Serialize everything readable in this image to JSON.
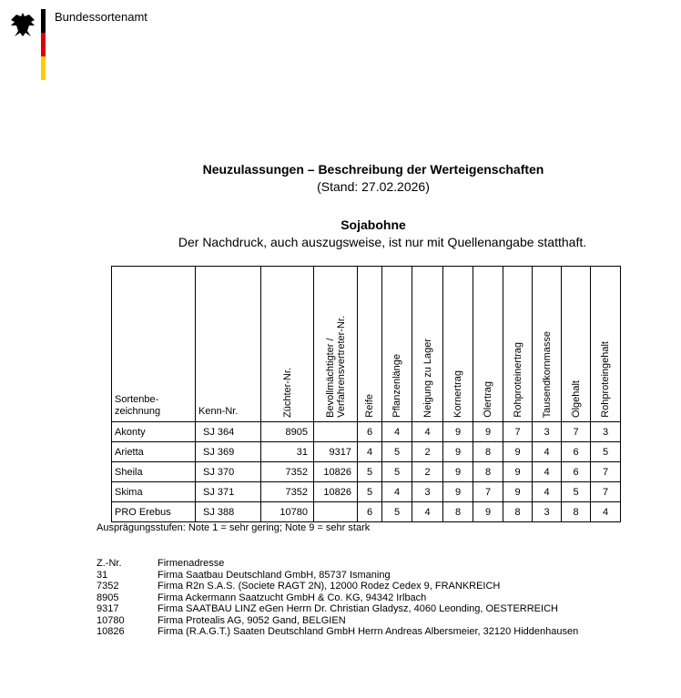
{
  "header": {
    "organization": "Bundessortenamt"
  },
  "title": "Neuzulassungen – Beschreibung der Werteigenschaften",
  "stand": "(Stand: 27.02.2026)",
  "crop": "Sojabohne",
  "notice": "Der Nachdruck, auch auszugsweise, ist nur mit Quellenangabe statthaft.",
  "table": {
    "columns": [
      "Sortenbe-\nzeichnung",
      "Kenn-Nr.",
      "Züchter-Nr.",
      "Bevollmächtigter /\nVerfahrensvertreter-Nr.",
      "Reife",
      "Pflanzenlänge",
      "Neigung zu Lager",
      "Kornertrag",
      "Ölertrag",
      "Rohproteinertrag",
      "Tausendkornmasse",
      "Ölgehalt",
      "Rohproteingehalt"
    ],
    "rows": [
      [
        "Akonty",
        "SJ 364",
        "8905",
        "",
        "6",
        "4",
        "4",
        "9",
        "9",
        "7",
        "3",
        "7",
        "3"
      ],
      [
        "Arietta",
        "SJ 369",
        "31",
        "9317",
        "4",
        "5",
        "2",
        "9",
        "8",
        "9",
        "4",
        "6",
        "5"
      ],
      [
        "Sheila",
        "SJ 370",
        "7352",
        "10826",
        "5",
        "5",
        "2",
        "9",
        "8",
        "9",
        "4",
        "6",
        "7"
      ],
      [
        "Skima",
        "SJ 371",
        "7352",
        "10826",
        "5",
        "4",
        "3",
        "9",
        "7",
        "9",
        "4",
        "5",
        "7"
      ],
      [
        "PRO Erebus",
        "SJ 388",
        "10780",
        "",
        "6",
        "5",
        "4",
        "8",
        "9",
        "8",
        "3",
        "8",
        "4"
      ]
    ]
  },
  "scale_note": "Ausprägungsstufen: Note 1 = sehr gering; Note 9 = sehr stark",
  "firms": {
    "header": [
      "Z.-Nr.",
      "Firmenadresse"
    ],
    "rows": [
      [
        "31",
        "Firma Saatbau Deutschland GmbH, 85737 Ismaning"
      ],
      [
        "7352",
        "Firma R2n S.A.S. (Societe RAGT 2N), 12000 Rodez Cedex 9, FRANKREICH"
      ],
      [
        "8905",
        "Firma Ackermann Saatzucht GmbH & Co. KG, 94342 Irlbach"
      ],
      [
        "9317",
        "Firma SAATBAU LINZ eGen Herrn Dr. Christian Gladysz, 4060 Leonding, OESTERREICH"
      ],
      [
        "10780",
        "Firma Protealis AG, 9052 Gand, BELGIEN"
      ],
      [
        "10826",
        "Firma (R.A.G.T.) Saaten Deutschland GmbH Herrn Andreas Albersmeier, 32120 Hiddenhausen"
      ]
    ]
  }
}
